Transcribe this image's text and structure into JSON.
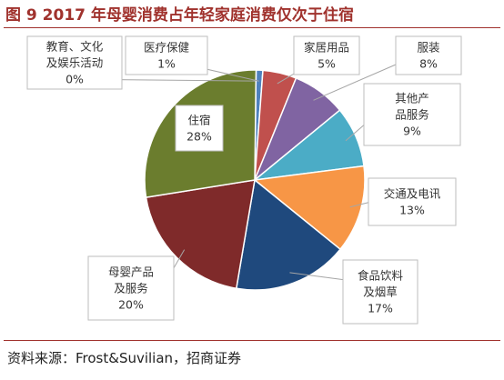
{
  "figure": {
    "title": "图 9 2017 年母婴消费占年轻家庭消费仅次于住宿",
    "source": "资料来源：Frost&Suvilian，招商证券"
  },
  "chart_data": {
    "type": "pie",
    "title": "",
    "slices": [
      {
        "label": "教育、文化及娱乐活动",
        "value": 0,
        "value_label": "0%",
        "color": "#4472c4"
      },
      {
        "label": "医疗保健",
        "value": 1,
        "value_label": "1%",
        "color": "#4f81bd"
      },
      {
        "label": "家居用品",
        "value": 5,
        "value_label": "5%",
        "color": "#c0504d"
      },
      {
        "label": "服装",
        "value": 8,
        "value_label": "8%",
        "color": "#8064a2"
      },
      {
        "label": "其他产品服务",
        "value": 9,
        "value_label": "9%",
        "color": "#4bacc6"
      },
      {
        "label": "交通及电讯",
        "value": 13,
        "value_label": "13%",
        "color": "#f79646"
      },
      {
        "label": "食品饮料及烟草",
        "value": 17,
        "value_label": "17%",
        "color": "#1f497d"
      },
      {
        "label": "母婴产品及服务",
        "value": 20,
        "value_label": "20%",
        "color": "#7f2a2a"
      },
      {
        "label": "住宿",
        "value": 28,
        "value_label": "28%",
        "color": "#6b7d2e"
      }
    ]
  }
}
